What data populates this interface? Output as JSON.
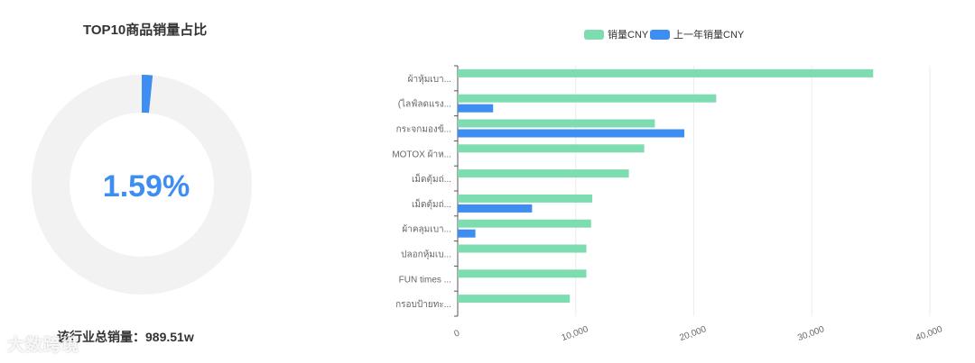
{
  "left_panel": {
    "title": "TOP10商品销量占比",
    "percent_label": "1.59%",
    "percent_value": 1.59,
    "footer_label": "该行业总销量：",
    "footer_value": "989.51w",
    "watermark": "大数跨境",
    "colors": {
      "ring": "#f2f2f2",
      "arc": "#3d8ef0",
      "percent_text": "#3d8ef0"
    }
  },
  "chart_data": {
    "type": "bar",
    "orientation": "horizontal",
    "categories": [
      "ผ้าหุ้มเบา...",
      "(ไลฟ์ลดแรง...",
      "กระจกมองข้...",
      "MOTOX ผ้าห...",
      "เม็ดตุ้มถ่...",
      "เม็ดตุ้มถ่...",
      "ผ้าคลุมเบา...",
      "ปลอกหุ้มเบ...",
      "FUN times ...",
      "กรอบป้ายทะ..."
    ],
    "series": [
      {
        "name": "销量CNY",
        "color": "#7ddcb0",
        "values": [
          35200,
          21900,
          16700,
          15800,
          14500,
          11400,
          11300,
          10900,
          10900,
          9500
        ]
      },
      {
        "name": "上一年销量CNY",
        "color": "#3d8ef0",
        "values": [
          0,
          3000,
          19200,
          0,
          0,
          6300,
          1500,
          0,
          0,
          0
        ]
      }
    ],
    "xlim": [
      0,
      40000
    ],
    "x_ticks": [
      0,
      10000,
      20000,
      30000,
      40000
    ],
    "x_tick_labels": [
      "0",
      "10,000",
      "20,000",
      "30,000",
      "40,000"
    ],
    "grid": true,
    "legend_position": "top-center"
  }
}
